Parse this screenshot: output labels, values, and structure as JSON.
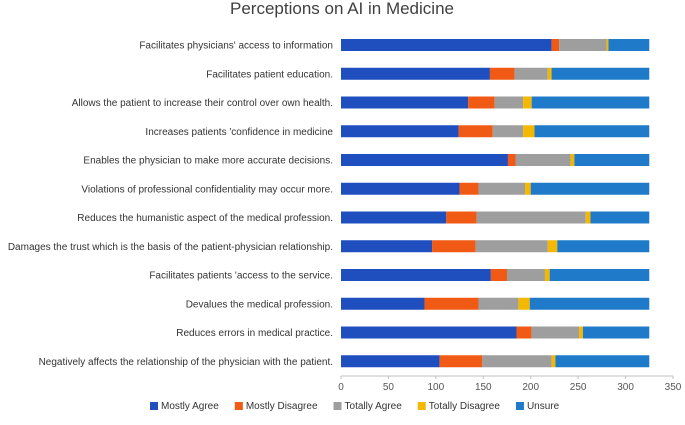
{
  "chart_data": {
    "type": "bar",
    "orientation": "horizontal",
    "stacked": true,
    "title": "Perceptions on AI in Medicine",
    "xlabel": "",
    "ylabel": "",
    "xlim": [
      0,
      350
    ],
    "xticks": [
      0,
      50,
      100,
      150,
      200,
      250,
      300,
      350
    ],
    "grid": false,
    "legend_position": "bottom",
    "categories": [
      "Facilitates physicians' access to information",
      "Facilitates patient education.",
      "Allows the patient to increase their  control over own health.",
      "Increases patients 'confidence in  medicine",
      "Enables the physician to make  more accurate decisions.",
      "Violations of professional  confidentiality may occur more.",
      "Reduces the humanistic aspect of  the medical profession.",
      "Damages the trust which is the basis  of the patient-physician  relationship.",
      "Facilitates patients 'access to the  service.",
      "Devalues the medical profession.",
      "Reduces errors in medical practice.",
      "Negatively affects the relationship  of the physician with the patient."
    ],
    "series": [
      {
        "name": "Mostly Agree",
        "color": "#1f4fbf",
        "values": [
          222,
          157,
          134,
          124,
          176,
          125,
          111,
          96,
          158,
          88,
          185,
          104
        ]
      },
      {
        "name": "Mostly Disagree",
        "color": "#f05a14",
        "values": [
          8,
          26,
          28,
          36,
          8,
          20,
          32,
          46,
          17,
          57,
          16,
          45
        ]
      },
      {
        "name": "Totally Agree",
        "color": "#9e9e9e",
        "values": [
          50,
          35,
          30,
          32,
          58,
          49,
          115,
          76,
          40,
          42,
          50,
          73
        ]
      },
      {
        "name": "Totally Disagree",
        "color": "#f5b800",
        "values": [
          2,
          4,
          9,
          12,
          4,
          6,
          5,
          10,
          5,
          12,
          4,
          4
        ]
      },
      {
        "name": "Unsure",
        "color": "#1f7bc9",
        "values": [
          43,
          103,
          124,
          121,
          79,
          125,
          62,
          97,
          105,
          126,
          70,
          99
        ]
      }
    ]
  }
}
